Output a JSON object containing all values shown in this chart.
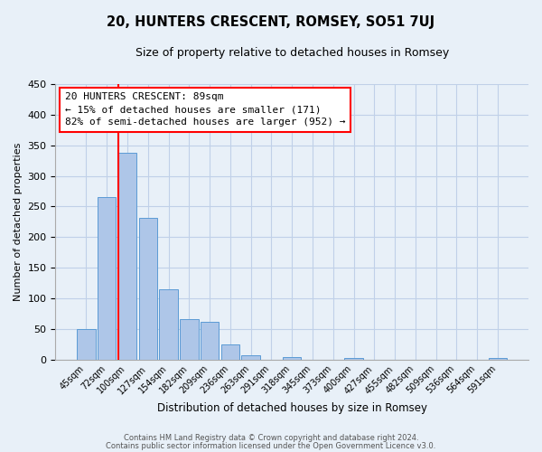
{
  "title": "20, HUNTERS CRESCENT, ROMSEY, SO51 7UJ",
  "subtitle": "Size of property relative to detached houses in Romsey",
  "xlabel": "Distribution of detached houses by size in Romsey",
  "ylabel": "Number of detached properties",
  "bar_labels": [
    "45sqm",
    "72sqm",
    "100sqm",
    "127sqm",
    "154sqm",
    "182sqm",
    "209sqm",
    "236sqm",
    "263sqm",
    "291sqm",
    "318sqm",
    "345sqm",
    "373sqm",
    "400sqm",
    "427sqm",
    "455sqm",
    "482sqm",
    "509sqm",
    "536sqm",
    "564sqm",
    "591sqm"
  ],
  "bar_values": [
    50,
    265,
    338,
    232,
    115,
    66,
    61,
    25,
    7,
    0,
    4,
    0,
    0,
    3,
    0,
    0,
    0,
    0,
    0,
    0,
    3
  ],
  "bar_color": "#aec6e8",
  "bar_edge_color": "#5b9bd5",
  "vline_color": "red",
  "vline_x_index": 2,
  "annotation_text": "20 HUNTERS CRESCENT: 89sqm\n← 15% of detached houses are smaller (171)\n82% of semi-detached houses are larger (952) →",
  "annotation_box_color": "white",
  "annotation_box_edgecolor": "red",
  "ylim": [
    0,
    450
  ],
  "yticks": [
    0,
    50,
    100,
    150,
    200,
    250,
    300,
    350,
    400,
    450
  ],
  "grid_color": "#c0d0e8",
  "background_color": "#e8f0f8",
  "footer_line1": "Contains HM Land Registry data © Crown copyright and database right 2024.",
  "footer_line2": "Contains public sector information licensed under the Open Government Licence v3.0."
}
